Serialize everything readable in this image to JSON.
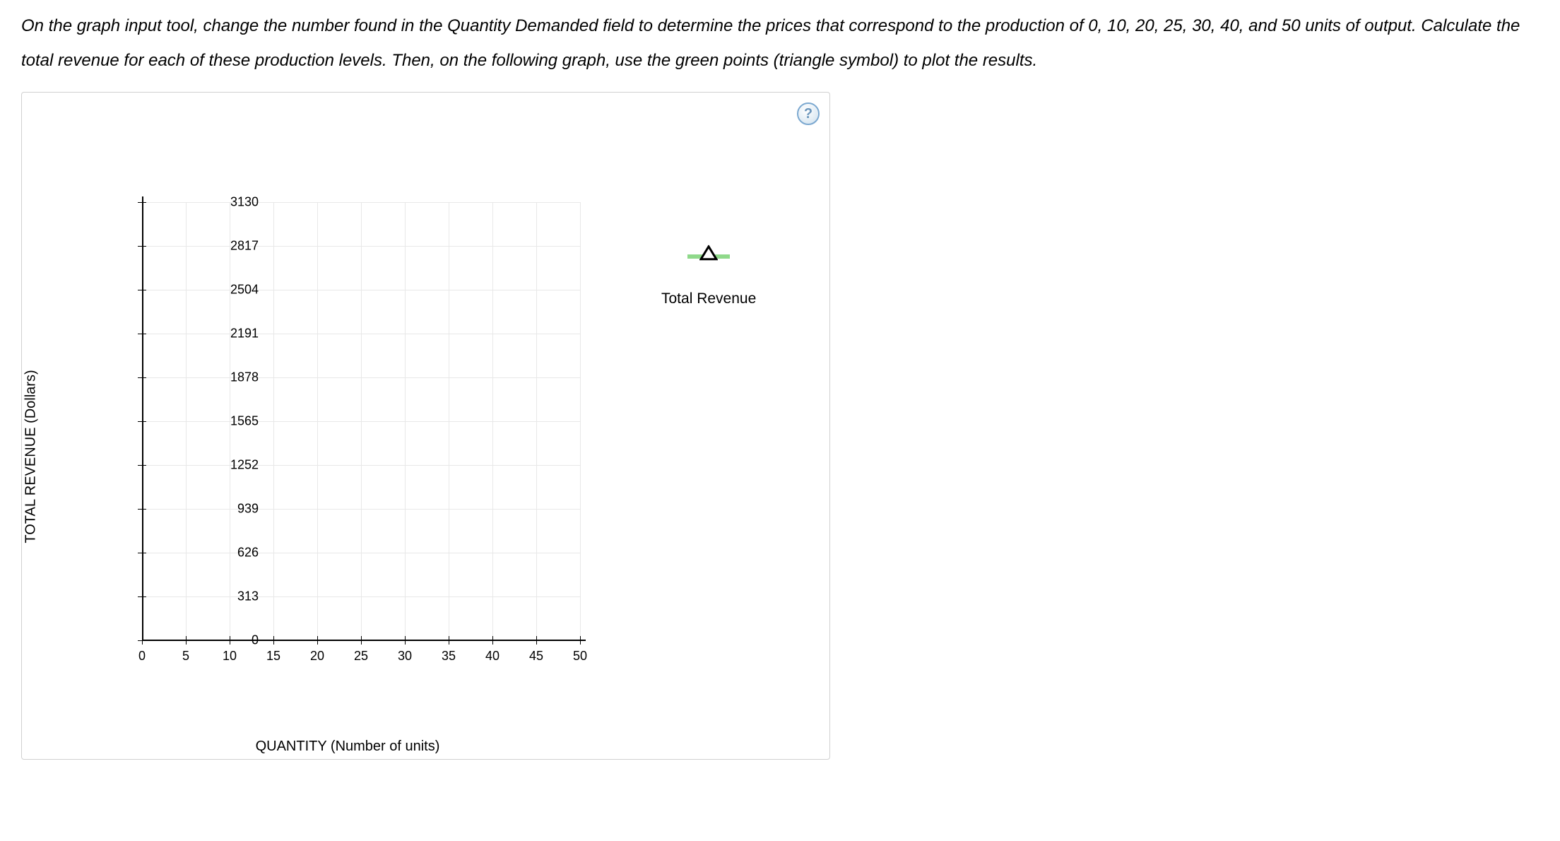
{
  "instructions": "On the graph input tool, change the number found in the Quantity Demanded field to determine the prices that correspond to the production of 0, 10, 20, 25, 30, 40, and 50 units of output. Calculate the total revenue for each of these production levels. Then, on the following graph, use the green points (triangle symbol) to plot the results.",
  "help_tooltip": "?",
  "chart": {
    "type": "scatter-empty",
    "y_axis_label": "TOTAL REVENUE (Dollars)",
    "x_axis_label": "QUANTITY (Number of units)",
    "x_ticks": [
      0,
      5,
      10,
      15,
      20,
      25,
      30,
      35,
      40,
      45,
      50
    ],
    "y_ticks": [
      0,
      313,
      626,
      939,
      1252,
      1565,
      1878,
      2191,
      2504,
      2817,
      3130
    ],
    "xlim": [
      0,
      50
    ],
    "ylim": [
      0,
      3130
    ],
    "grid_color": "#e8e8e8",
    "axis_color": "#000000",
    "background_color": "#ffffff",
    "tick_fontsize": 18,
    "label_fontsize": 20
  },
  "legend": {
    "label": "Total Revenue",
    "symbol_type": "triangle",
    "line_color": "#8fd98a",
    "triangle_stroke": "#000000",
    "triangle_fill": "#ffffff",
    "label_fontsize": 21
  }
}
